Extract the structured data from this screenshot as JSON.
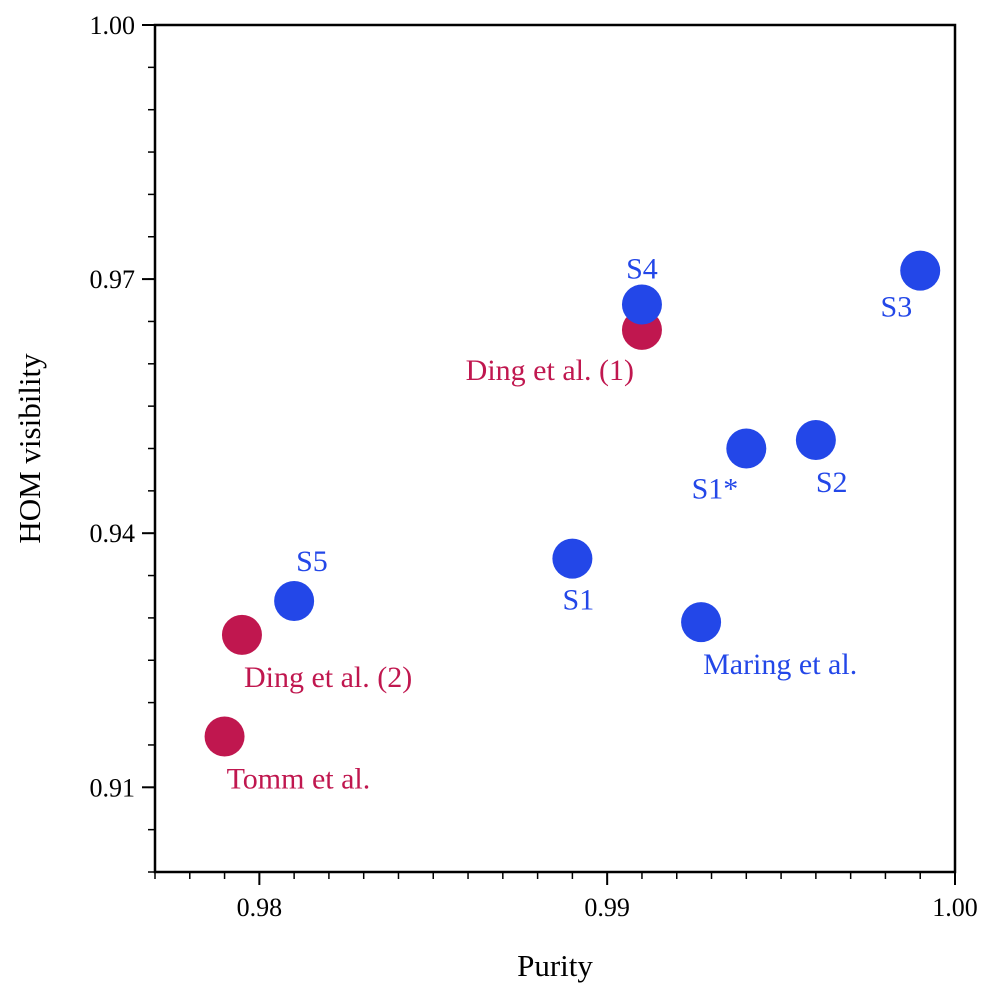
{
  "chart_data": {
    "type": "scatter",
    "title": "",
    "xlabel": "Purity",
    "ylabel": "HOM visibility",
    "xlim": [
      0.977,
      1.0
    ],
    "ylim": [
      0.9,
      1.0
    ],
    "x_ticks": [
      {
        "value": 0.98,
        "label": "0.98"
      },
      {
        "value": 0.99,
        "label": "0.99"
      },
      {
        "value": 1.0,
        "label": "1.00"
      }
    ],
    "y_ticks": [
      {
        "value": 0.91,
        "label": "0.91"
      },
      {
        "value": 0.94,
        "label": "0.94"
      },
      {
        "value": 0.97,
        "label": "0.97"
      },
      {
        "value": 1.0,
        "label": "1.00"
      }
    ],
    "x_minor_step": 0.001,
    "y_minor_step": 0.005,
    "colors": {
      "this_work": "#2347e8",
      "other_work": "#c0174f"
    },
    "series": [
      {
        "name": "blue",
        "color": "#2347e8",
        "points": [
          {
            "label": "S1",
            "x": 0.989,
            "y": 0.937,
            "label_pos": "below"
          },
          {
            "label": "S1*",
            "x": 0.994,
            "y": 0.95,
            "label_pos": "below-left"
          },
          {
            "label": "S2",
            "x": 0.996,
            "y": 0.951,
            "label_pos": "below-right"
          },
          {
            "label": "S3",
            "x": 0.999,
            "y": 0.971,
            "label_pos": "below-left"
          },
          {
            "label": "S4",
            "x": 0.991,
            "y": 0.967,
            "label_pos": "above"
          },
          {
            "label": "S5",
            "x": 0.981,
            "y": 0.932,
            "label_pos": "above-right"
          },
          {
            "label": "Maring et al.",
            "x": 0.9927,
            "y": 0.9295,
            "label_pos": "below-right"
          }
        ]
      },
      {
        "name": "red",
        "color": "#c0174f",
        "points": [
          {
            "label": "Ding et al. (1)",
            "x": 0.991,
            "y": 0.964,
            "label_pos": "below-left"
          },
          {
            "label": "Ding et al. (2)",
            "x": 0.9795,
            "y": 0.928,
            "label_pos": "below-right"
          },
          {
            "label": "Tomm et al.",
            "x": 0.979,
            "y": 0.916,
            "label_pos": "below-right"
          }
        ]
      }
    ]
  }
}
